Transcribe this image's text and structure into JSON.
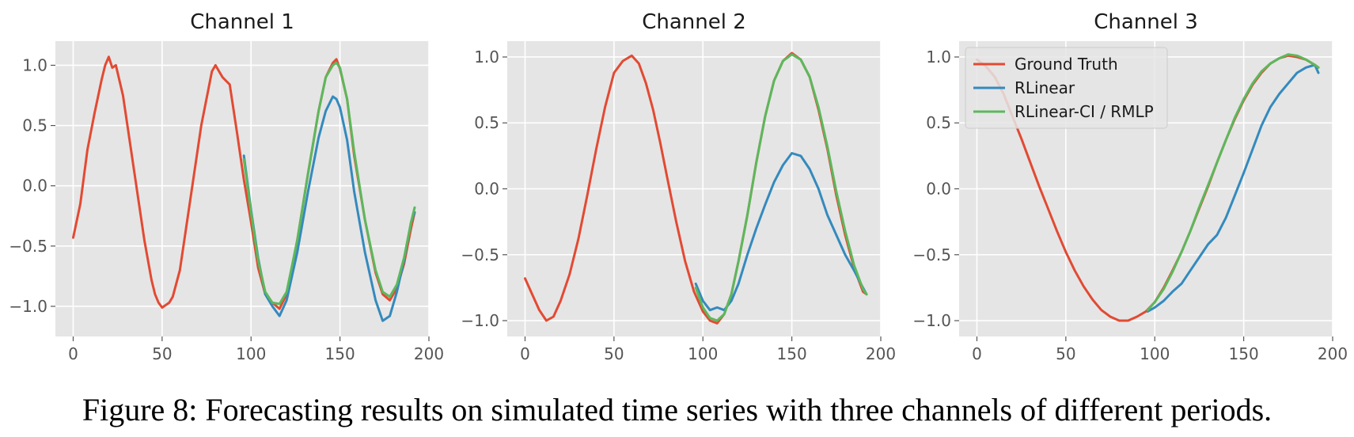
{
  "caption": "Figure 8: Forecasting results on simulated time series with three channels of different periods.",
  "colors": {
    "ground_truth": "#e24a33",
    "rlinear": "#348abd",
    "rlinear_ci": "#5cb85c",
    "plot_background": "#e5e5e5",
    "grid": "#ffffff"
  },
  "chart_data": [
    {
      "type": "line",
      "title": "Channel 1",
      "xlabel": "",
      "ylabel": "",
      "xlim": [
        -10,
        200
      ],
      "ylim": [
        -1.25,
        1.2
      ],
      "xticks": [
        0,
        50,
        100,
        150,
        200
      ],
      "yticks": [
        1.0,
        0.5,
        0.0,
        -0.5,
        -1.0
      ],
      "ytick_labels": [
        "1.0",
        "0.5",
        "0.0",
        "−0.5",
        "−1.0"
      ],
      "grid": true,
      "series": [
        {
          "name": "Ground Truth",
          "color": "#e24a33",
          "x": [
            0,
            4,
            8,
            12,
            16,
            18,
            20,
            22,
            24,
            28,
            32,
            36,
            40,
            44,
            46,
            48,
            50,
            52,
            54,
            56,
            60,
            64,
            68,
            72,
            76,
            78,
            80,
            82,
            84,
            88,
            92,
            96,
            100,
            104,
            108,
            112,
            116,
            120,
            126,
            132,
            138,
            142,
            146,
            148,
            150,
            154,
            158,
            164,
            170,
            174,
            178,
            182,
            186,
            190,
            192
          ],
          "y": [
            -0.43,
            -0.15,
            0.3,
            0.6,
            0.88,
            1.0,
            1.07,
            0.98,
            1.0,
            0.75,
            0.35,
            -0.05,
            -0.45,
            -0.78,
            -0.9,
            -0.97,
            -1.01,
            -0.99,
            -0.97,
            -0.92,
            -0.7,
            -0.3,
            0.1,
            0.5,
            0.8,
            0.95,
            1.0,
            0.95,
            0.9,
            0.84,
            0.45,
            0.05,
            -0.3,
            -0.68,
            -0.9,
            -0.97,
            -1.02,
            -0.9,
            -0.45,
            0.1,
            0.62,
            0.9,
            1.02,
            1.05,
            0.97,
            0.72,
            0.25,
            -0.28,
            -0.72,
            -0.9,
            -0.95,
            -0.85,
            -0.65,
            -0.35,
            -0.22
          ]
        },
        {
          "name": "RLinear",
          "color": "#348abd",
          "x": [
            96,
            100,
            104,
            108,
            112,
            116,
            120,
            126,
            132,
            138,
            142,
            146,
            148,
            150,
            154,
            158,
            164,
            170,
            174,
            178,
            182,
            186,
            190,
            192
          ],
          "y": [
            0.25,
            -0.2,
            -0.6,
            -0.9,
            -1.0,
            -1.08,
            -0.95,
            -0.55,
            -0.05,
            0.4,
            0.62,
            0.74,
            0.72,
            0.65,
            0.38,
            -0.05,
            -0.55,
            -0.95,
            -1.12,
            -1.08,
            -0.88,
            -0.62,
            -0.3,
            -0.22
          ]
        },
        {
          "name": "RLinear-CI / RMLP",
          "color": "#5cb85c",
          "x": [
            96,
            100,
            104,
            108,
            112,
            116,
            120,
            126,
            132,
            138,
            142,
            146,
            148,
            150,
            154,
            158,
            164,
            170,
            174,
            178,
            182,
            186,
            190,
            192
          ],
          "y": [
            0.22,
            -0.22,
            -0.62,
            -0.88,
            -0.97,
            -0.98,
            -0.88,
            -0.45,
            0.1,
            0.62,
            0.9,
            1.0,
            1.02,
            0.98,
            0.72,
            0.28,
            -0.28,
            -0.7,
            -0.88,
            -0.92,
            -0.82,
            -0.6,
            -0.3,
            -0.18
          ]
        }
      ]
    },
    {
      "type": "line",
      "title": "Channel 2",
      "xlabel": "",
      "ylabel": "",
      "xlim": [
        -10,
        200
      ],
      "ylim": [
        -1.12,
        1.12
      ],
      "xticks": [
        0,
        50,
        100,
        150,
        200
      ],
      "yticks": [
        1.0,
        0.5,
        0.0,
        -0.5,
        -1.0
      ],
      "ytick_labels": [
        "1.0",
        "0.5",
        "0.0",
        "−0.5",
        "−1.0"
      ],
      "grid": true,
      "series": [
        {
          "name": "Ground Truth",
          "color": "#e24a33",
          "x": [
            0,
            4,
            8,
            12,
            16,
            20,
            25,
            30,
            35,
            40,
            45,
            50,
            55,
            60,
            64,
            68,
            72,
            76,
            80,
            85,
            90,
            95,
            100,
            104,
            108,
            112,
            116,
            120,
            125,
            130,
            135,
            140,
            145,
            150,
            155,
            160,
            165,
            170,
            175,
            180,
            185,
            190,
            192
          ],
          "y": [
            -0.68,
            -0.8,
            -0.92,
            -1.0,
            -0.97,
            -0.85,
            -0.65,
            -0.38,
            -0.05,
            0.3,
            0.62,
            0.88,
            0.97,
            1.01,
            0.95,
            0.8,
            0.6,
            0.35,
            0.08,
            -0.25,
            -0.55,
            -0.78,
            -0.93,
            -1.0,
            -1.02,
            -0.95,
            -0.8,
            -0.55,
            -0.2,
            0.2,
            0.55,
            0.82,
            0.97,
            1.03,
            0.98,
            0.85,
            0.6,
            0.3,
            -0.05,
            -0.35,
            -0.6,
            -0.78,
            -0.8
          ]
        },
        {
          "name": "RLinear",
          "color": "#348abd",
          "x": [
            96,
            100,
            104,
            108,
            112,
            116,
            120,
            125,
            130,
            135,
            140,
            145,
            150,
            155,
            160,
            165,
            170,
            175,
            180,
            185,
            190,
            192
          ],
          "y": [
            -0.72,
            -0.85,
            -0.92,
            -0.9,
            -0.92,
            -0.85,
            -0.72,
            -0.5,
            -0.3,
            -0.12,
            0.05,
            0.18,
            0.27,
            0.25,
            0.15,
            0.0,
            -0.2,
            -0.35,
            -0.5,
            -0.62,
            -0.75,
            -0.8
          ]
        },
        {
          "name": "RLinear-CI / RMLP",
          "color": "#5cb85c",
          "x": [
            96,
            100,
            104,
            108,
            112,
            116,
            120,
            125,
            130,
            135,
            140,
            145,
            150,
            155,
            160,
            165,
            170,
            175,
            180,
            185,
            190,
            192
          ],
          "y": [
            -0.75,
            -0.9,
            -0.98,
            -1.0,
            -0.95,
            -0.8,
            -0.55,
            -0.2,
            0.2,
            0.55,
            0.82,
            0.97,
            1.02,
            0.98,
            0.85,
            0.62,
            0.32,
            -0.02,
            -0.32,
            -0.58,
            -0.76,
            -0.8
          ]
        }
      ]
    },
    {
      "type": "line",
      "title": "Channel 3",
      "xlabel": "",
      "ylabel": "",
      "xlim": [
        -10,
        200
      ],
      "ylim": [
        -1.12,
        1.12
      ],
      "xticks": [
        0,
        50,
        100,
        150,
        200
      ],
      "yticks": [
        1.0,
        0.5,
        0.0,
        -0.5,
        -1.0
      ],
      "ytick_labels": [
        "1.0",
        "0.5",
        "0.0",
        "−0.5",
        "−1.0"
      ],
      "grid": true,
      "legend": {
        "position": "top-left",
        "entries": [
          "Ground Truth",
          "RLinear",
          "RLinear-CI / RMLP"
        ]
      },
      "series": [
        {
          "name": "Ground Truth",
          "color": "#e24a33",
          "x": [
            0,
            5,
            10,
            15,
            20,
            25,
            30,
            35,
            40,
            45,
            50,
            55,
            60,
            65,
            70,
            75,
            80,
            85,
            90,
            95,
            100,
            105,
            110,
            115,
            120,
            125,
            130,
            135,
            140,
            145,
            150,
            155,
            160,
            165,
            170,
            175,
            180,
            185,
            190,
            192
          ],
          "y": [
            0.98,
            0.93,
            0.85,
            0.72,
            0.55,
            0.38,
            0.2,
            0.02,
            -0.15,
            -0.32,
            -0.48,
            -0.62,
            -0.74,
            -0.84,
            -0.92,
            -0.97,
            -1.0,
            -1.0,
            -0.97,
            -0.93,
            -0.86,
            -0.75,
            -0.62,
            -0.48,
            -0.32,
            -0.15,
            0.02,
            0.2,
            0.37,
            0.53,
            0.67,
            0.79,
            0.88,
            0.95,
            0.99,
            1.01,
            1.0,
            0.98,
            0.94,
            0.92
          ]
        },
        {
          "name": "RLinear",
          "color": "#348abd",
          "x": [
            96,
            100,
            105,
            110,
            115,
            120,
            125,
            130,
            135,
            140,
            145,
            150,
            155,
            160,
            165,
            170,
            175,
            180,
            185,
            190,
            192
          ],
          "y": [
            -0.93,
            -0.9,
            -0.85,
            -0.78,
            -0.72,
            -0.62,
            -0.52,
            -0.42,
            -0.35,
            -0.22,
            -0.05,
            0.12,
            0.3,
            0.48,
            0.62,
            0.72,
            0.8,
            0.88,
            0.92,
            0.94,
            0.88
          ]
        },
        {
          "name": "RLinear-CI / RMLP",
          "color": "#5cb85c",
          "x": [
            96,
            100,
            105,
            110,
            115,
            120,
            125,
            130,
            135,
            140,
            145,
            150,
            155,
            160,
            165,
            170,
            175,
            180,
            185,
            190,
            192
          ],
          "y": [
            -0.92,
            -0.86,
            -0.76,
            -0.63,
            -0.48,
            -0.32,
            -0.14,
            0.03,
            0.2,
            0.37,
            0.54,
            0.68,
            0.8,
            0.89,
            0.95,
            0.99,
            1.02,
            1.01,
            0.98,
            0.94,
            0.92
          ]
        }
      ]
    }
  ]
}
